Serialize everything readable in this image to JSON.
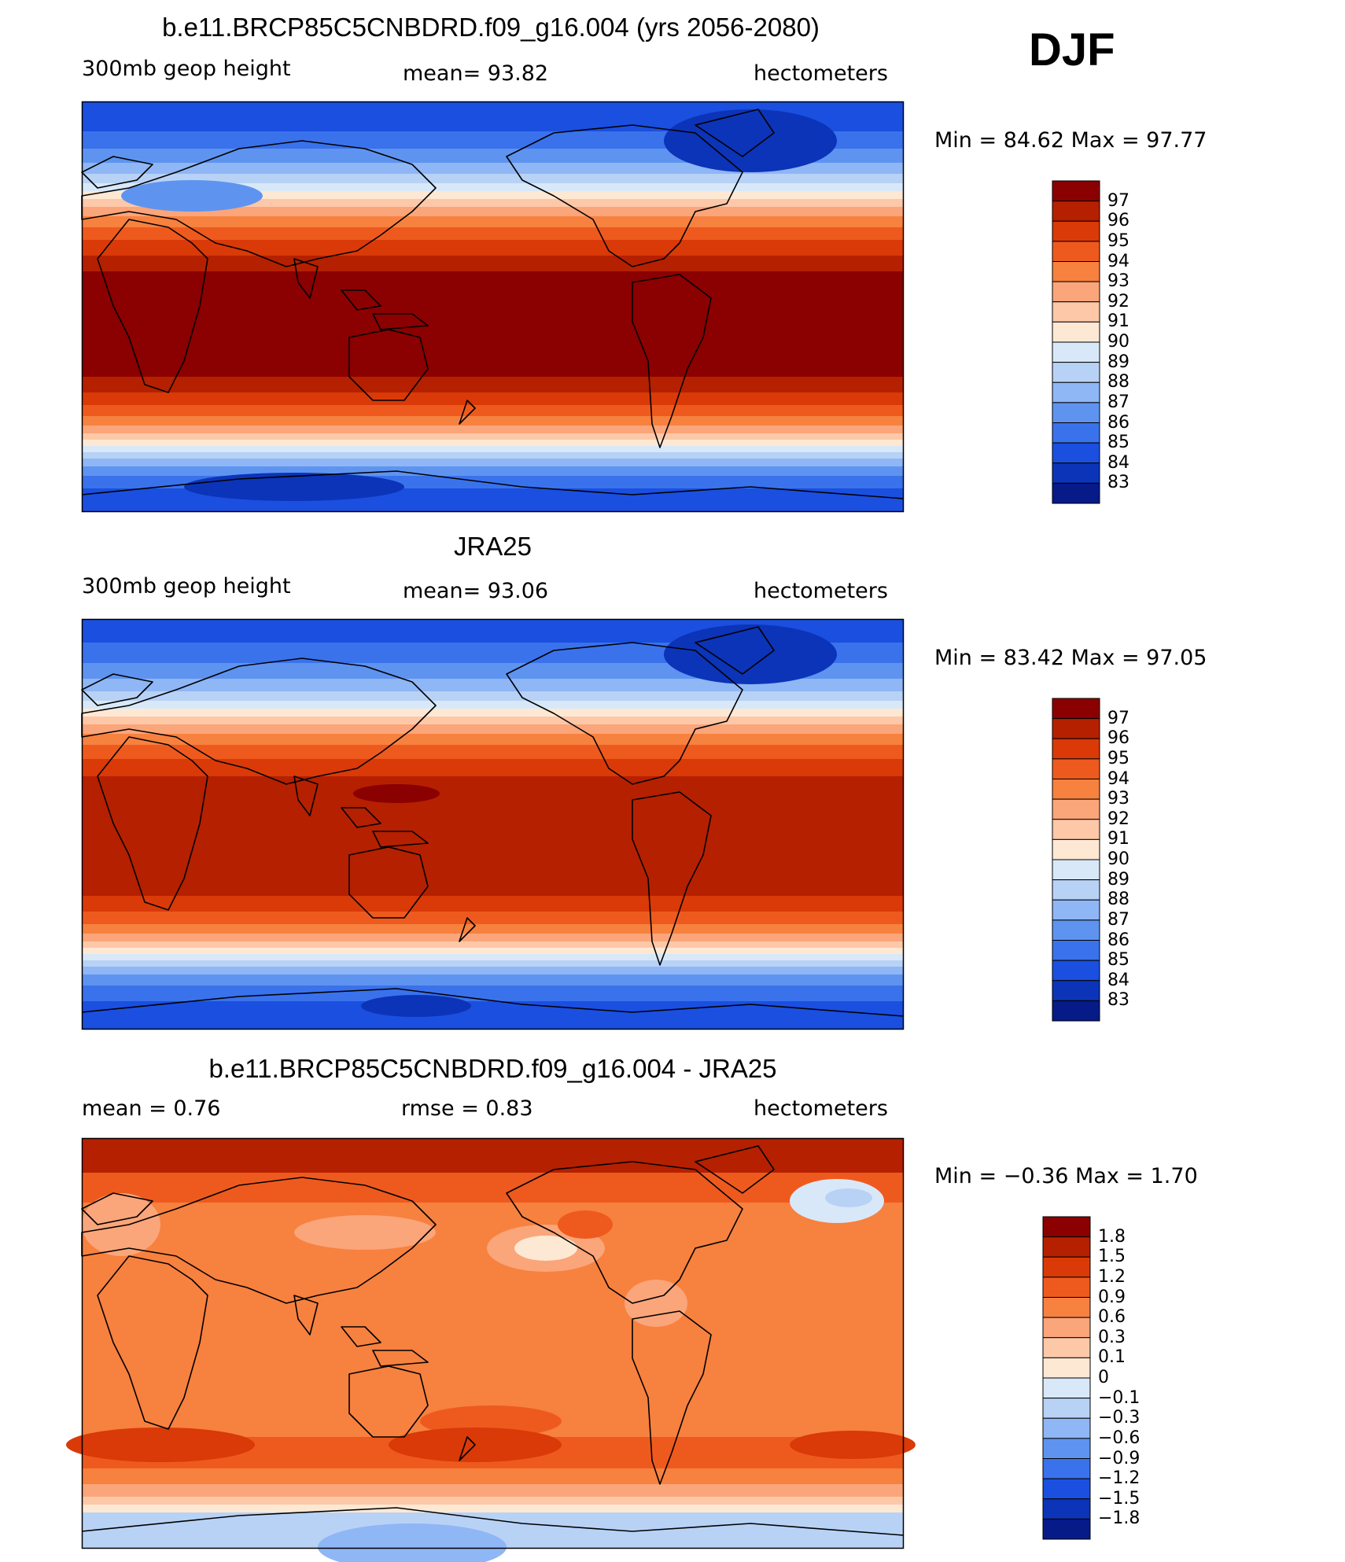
{
  "season": "DJF",
  "panels": [
    {
      "title": "b.e11.BRCP85C5CNBDRD.f09_g16.004 (yrs 2056-2080)",
      "left_label": "300mb  geop  height",
      "center_label": "mean=   93.82",
      "right_label": "hectometers",
      "minmax": "Min  =   84.62  Max  =   97.77"
    },
    {
      "title": "JRA25",
      "left_label": "300mb  geop  height",
      "center_label": "mean=   93.06",
      "right_label": "hectometers",
      "minmax": "Min  =   83.42  Max  =   97.05"
    },
    {
      "title": "b.e11.BRCP85C5CNBDRD.f09_g16.004 - JRA25",
      "left_label": "mean  =     0.76",
      "center_label": "rmse  =     0.83",
      "right_label": "hectometers",
      "minmax": "Min  =   −0.36  Max  =     1.70"
    }
  ],
  "colorbars": {
    "absolute": {
      "labels": [
        "97",
        "96",
        "95",
        "94",
        "93",
        "92",
        "91",
        "90",
        "89",
        "88",
        "87",
        "86",
        "85",
        "84",
        "83"
      ],
      "colors": [
        "#8b0000",
        "#b52000",
        "#d93a08",
        "#ee5a1e",
        "#f7813f",
        "#fba57a",
        "#fdc8a8",
        "#fde8d4",
        "#d8e8f8",
        "#b8d2f6",
        "#8fb6f5",
        "#5e94f0",
        "#3a72ec",
        "#1a4fe0",
        "#0c34b8",
        "#061a88"
      ]
    },
    "difference": {
      "labels": [
        "1.8",
        "1.5",
        "1.2",
        "0.9",
        "0.6",
        "0.3",
        "0.1",
        "0",
        "−0.1",
        "−0.3",
        "−0.6",
        "−0.9",
        "−1.2",
        "−1.5",
        "−1.8"
      ],
      "colors": [
        "#8b0000",
        "#b52000",
        "#d93a08",
        "#ee5a1e",
        "#f7813f",
        "#fba57a",
        "#fdc8a8",
        "#fde8d4",
        "#d8e8f8",
        "#b8d2f6",
        "#8fb6f5",
        "#5e94f0",
        "#3a72ec",
        "#1a4fe0",
        "#0c34b8",
        "#061a88"
      ]
    }
  },
  "chart_data": [
    {
      "type": "heatmap",
      "title": "b.e11.BRCP85C5CNBDRD.f09_g16.004 (yrs 2056-2080)",
      "variable": "300mb geop height",
      "units": "hectometers",
      "mean": 93.82,
      "min": 84.62,
      "max": 97.77,
      "contour_levels": [
        83,
        84,
        85,
        86,
        87,
        88,
        89,
        90,
        91,
        92,
        93,
        94,
        95,
        96,
        97
      ]
    },
    {
      "type": "heatmap",
      "title": "JRA25",
      "variable": "300mb geop height",
      "units": "hectometers",
      "mean": 93.06,
      "min": 83.42,
      "max": 97.05,
      "contour_levels": [
        83,
        84,
        85,
        86,
        87,
        88,
        89,
        90,
        91,
        92,
        93,
        94,
        95,
        96,
        97
      ]
    },
    {
      "type": "heatmap",
      "title": "b.e11.BRCP85C5CNBDRD.f09_g16.004 - JRA25",
      "units": "hectometers",
      "mean": 0.76,
      "rmse": 0.83,
      "min": -0.36,
      "max": 1.7,
      "contour_levels": [
        -1.8,
        -1.5,
        -1.2,
        -0.9,
        -0.6,
        -0.3,
        -0.1,
        0,
        0.1,
        0.3,
        0.6,
        0.9,
        1.2,
        1.5,
        1.8
      ]
    }
  ]
}
